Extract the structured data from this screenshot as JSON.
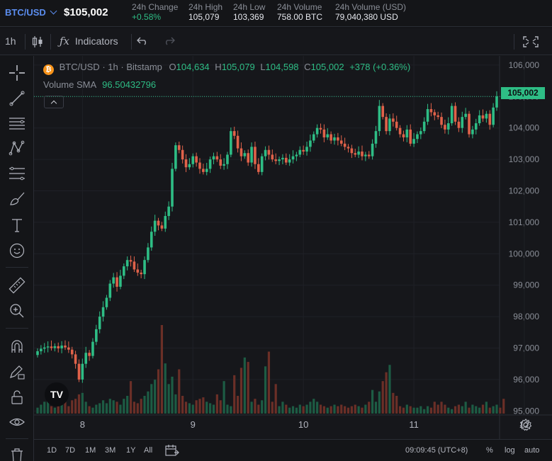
{
  "header": {
    "pair": "BTC/USD",
    "price": "$105,002",
    "stats": [
      {
        "label": "24h Change",
        "value": "+0.58%",
        "positive": true
      },
      {
        "label": "24h High",
        "value": "105,079"
      },
      {
        "label": "24h Low",
        "value": "103,369"
      },
      {
        "label": "24h Volume",
        "value": "758.00 BTC"
      },
      {
        "label": "24h Volume (USD)",
        "value": "79,040,380 USD"
      }
    ]
  },
  "toolbar": {
    "interval": "1h",
    "indicators_label": "Indicators"
  },
  "legend": {
    "symbol": "BTC/USD",
    "interval": "1h",
    "exchange": "Bitstamp",
    "open_label": "O",
    "open": "104,634",
    "high_label": "H",
    "high": "105,079",
    "low_label": "L",
    "low": "104,598",
    "close_label": "C",
    "close": "105,002",
    "change": "+378 (+0.36%)",
    "sma_label": "Volume SMA",
    "sma_value": "96.50432796"
  },
  "logo_text": "TV",
  "last_price_label": "105,002",
  "bottom": {
    "ranges": [
      "1D",
      "7D",
      "1M",
      "3M",
      "1Y",
      "All"
    ],
    "time": "09:09:45 (UTC+8)",
    "percent": "%",
    "log": "log",
    "auto": "auto"
  },
  "colors": {
    "up": "#2ebd85",
    "down": "#e0624a",
    "accent": "#5b8def",
    "bitcoin": "#f7931a"
  },
  "chart_data": {
    "type": "candlestick",
    "y_ticks": [
      95000,
      96000,
      97000,
      98000,
      99000,
      100000,
      101000,
      102000,
      103000,
      104000,
      105000,
      106000
    ],
    "y_tick_labels": [
      "95,000",
      "96,000",
      "97,000",
      "98,000",
      "99,000",
      "100,000",
      "101,000",
      "102,000",
      "103,000",
      "104,000",
      "105,000",
      "106,000"
    ],
    "x_tick_labels": [
      "8",
      "9",
      "10",
      "11",
      "12"
    ],
    "x_tick_index": [
      13,
      45,
      77,
      109,
      141
    ],
    "ylim": [
      94850,
      106200
    ],
    "last_price": 105002,
    "series": [
      {
        "name": "price",
        "close": [
          96900,
          96980,
          97020,
          97050,
          97000,
          97060,
          96990,
          97080,
          97020,
          96950,
          96800,
          96500,
          96000,
          96500,
          96850,
          96750,
          97200,
          97600,
          98000,
          98300,
          98600,
          99050,
          99250,
          98950,
          99300,
          99600,
          99800,
          99750,
          99500,
          99400,
          99350,
          99800,
          100200,
          100700,
          101050,
          100900,
          100800,
          101200,
          101500,
          102700,
          103450,
          103300,
          103000,
          102750,
          102850,
          103100,
          102900,
          102700,
          102600,
          102700,
          103000,
          103100,
          103000,
          102800,
          102850,
          103150,
          103900,
          103750,
          103350,
          103100,
          103200,
          102900,
          103400,
          102850,
          102600,
          103100,
          103300,
          103150,
          103000,
          102950,
          103000,
          103050,
          102900,
          103000,
          103100,
          103150,
          103300,
          103250,
          103400,
          103600,
          103800,
          104000,
          103950,
          103700,
          103800,
          103600,
          103700,
          103600,
          103500,
          103400,
          103350,
          103200,
          103150,
          103250,
          103100,
          103150,
          103100,
          103500,
          103900,
          104700,
          104350,
          103900,
          104300,
          104200,
          104000,
          103800,
          103700,
          103950,
          103500,
          103650,
          103800,
          103900,
          104200,
          104600,
          104500,
          104400,
          104350,
          104100,
          103950,
          104150,
          104700,
          104200,
          104000,
          104350,
          104450,
          103800,
          103950,
          104150,
          104400,
          104300,
          104450,
          104100,
          104650,
          105002
        ]
      },
      {
        "name": "Volume",
        "values": [
          4,
          6,
          8,
          9,
          5,
          4,
          5,
          7,
          12,
          5,
          9,
          10,
          13,
          14,
          8,
          5,
          4,
          6,
          7,
          9,
          7,
          10,
          9,
          8,
          6,
          10,
          12,
          22,
          8,
          7,
          10,
          12,
          15,
          20,
          23,
          30,
          60,
          34,
          20,
          25,
          13,
          30,
          12,
          8,
          7,
          6,
          9,
          10,
          11,
          8,
          7,
          6,
          13,
          9,
          22,
          6,
          5,
          26,
          12,
          31,
          38,
          35,
          8,
          10,
          6,
          9,
          32,
          42,
          8,
          20,
          5,
          8,
          6,
          4,
          5,
          4,
          6,
          5,
          6,
          8,
          10,
          8,
          6,
          5,
          4,
          5,
          6,
          5,
          6,
          5,
          4,
          5,
          6,
          5,
          4,
          6,
          8,
          16,
          8,
          15,
          22,
          28,
          33,
          14,
          12,
          5,
          4,
          6,
          5,
          4,
          4,
          5,
          3,
          5,
          4,
          8,
          6,
          8,
          6,
          4,
          3,
          5,
          6,
          5,
          8,
          4,
          6,
          5,
          4,
          6,
          8,
          4,
          5,
          6,
          4,
          10
        ]
      }
    ],
    "volume_sma": 96.50432796
  }
}
